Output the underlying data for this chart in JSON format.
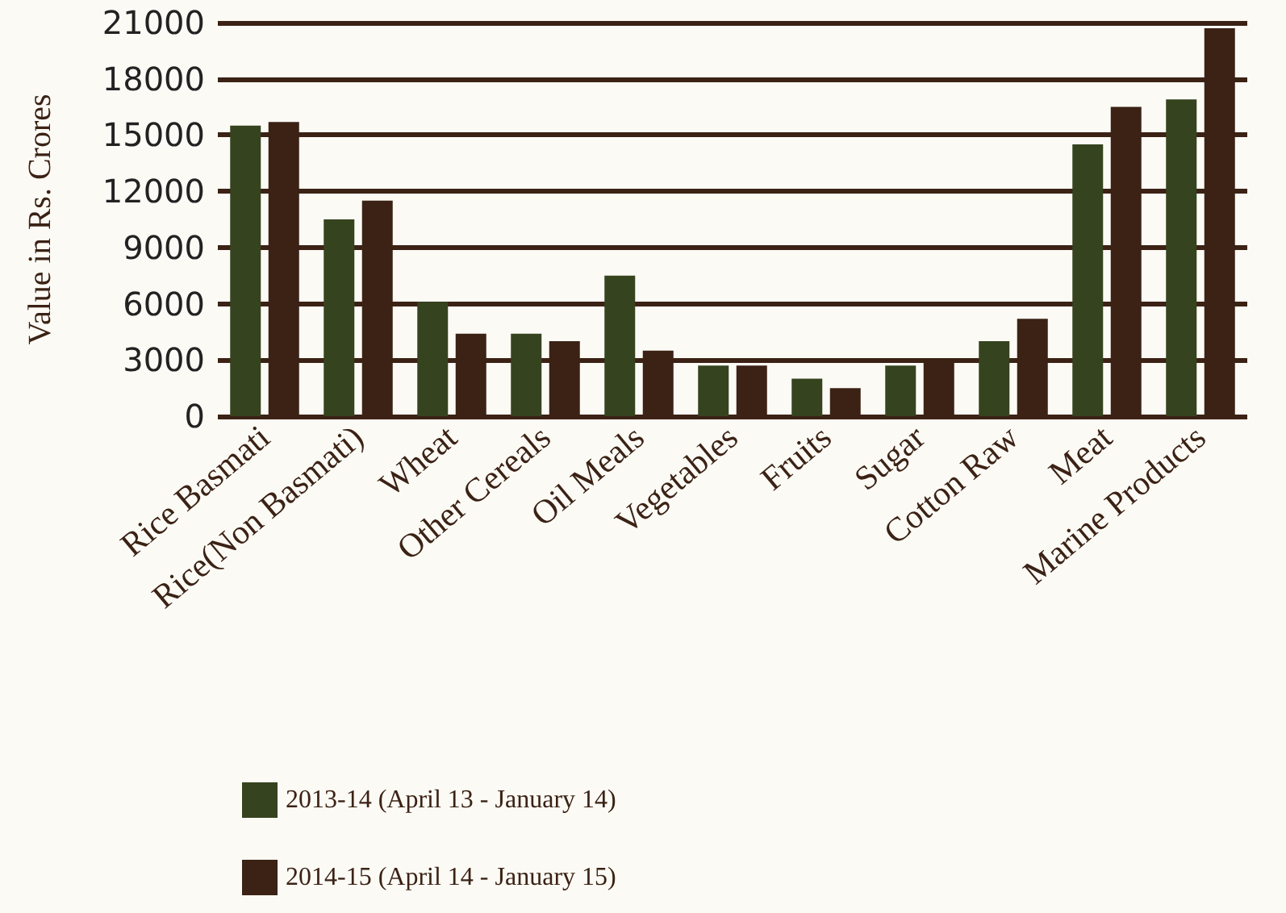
{
  "chart_data": {
    "type": "bar",
    "ylabel": "Value in Rs. Crores",
    "categories": [
      "Rice Basmati",
      "Rice(Non Basmati)",
      "Wheat",
      "Other Cereals",
      "Oil Meals",
      "Vegetables",
      "Fruits",
      "Sugar",
      "Cotton Raw",
      "Meat",
      "Marine Products"
    ],
    "series": [
      {
        "name": "2013-14 (April 13 - January 14)",
        "color": "#36431f",
        "values": [
          15500,
          10500,
          6100,
          4400,
          7500,
          2700,
          2000,
          2700,
          4000,
          14500,
          16900
        ]
      },
      {
        "name": "2014-15 (April 14 - January 15)",
        "color": "#3b2215",
        "values": [
          15700,
          11500,
          4400,
          4000,
          3500,
          2700,
          1500,
          3000,
          5200,
          16500,
          20700
        ]
      }
    ],
    "ylim": [
      0,
      21000
    ],
    "yticks": [
      0,
      3000,
      6000,
      9000,
      12000,
      15000,
      18000,
      21000
    ],
    "grid": "y",
    "legend": "bottom left"
  }
}
